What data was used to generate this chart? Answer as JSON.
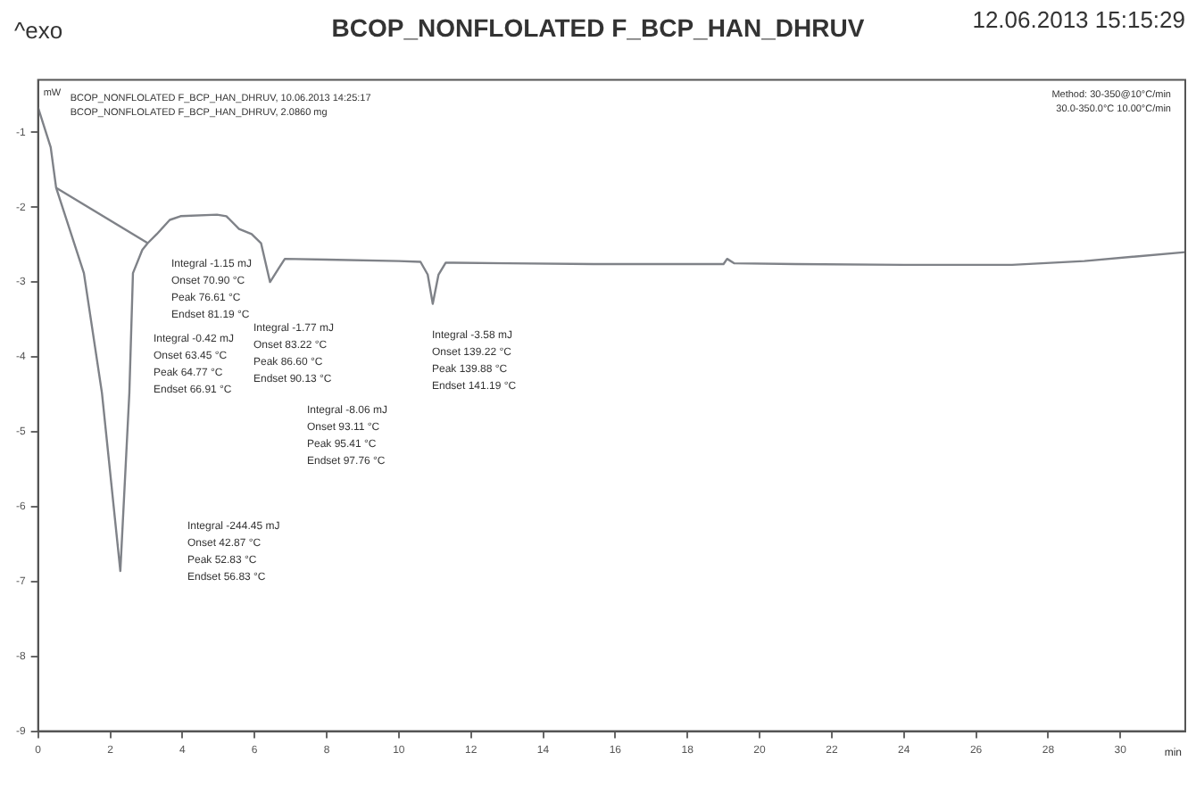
{
  "chart_data": {
    "type": "line",
    "title": "BCOP_NONFLOLATED F_BCP_HAN_DHRUV",
    "xlabel": "min",
    "ylabel": "mW",
    "xlim": [
      0,
      31.8
    ],
    "xticks": [
      0,
      2,
      4,
      6,
      8,
      10,
      12,
      14,
      16,
      18,
      20,
      22,
      24,
      26,
      28,
      30
    ],
    "ylim": [
      -9,
      -0.3
    ],
    "yticks": [
      -1,
      -2,
      -3,
      -4,
      -5,
      -6,
      -7,
      -8,
      -9
    ],
    "grid": false,
    "legend": false,
    "marker": "none",
    "line_style": "solid",
    "series": [
      {
        "color": "#7f8288",
        "x": [
          0,
          0.35,
          0.5,
          1.27,
          1.77,
          2.28,
          2.53,
          2.63,
          2.89,
          3.04,
          3.29,
          3.65,
          3.95,
          4.96,
          5.22,
          5.57,
          5.92,
          6.18,
          6.43,
          6.68,
          6.84,
          8,
          10,
          10.6,
          10.8,
          10.94,
          11.1,
          11.3,
          13,
          15.4,
          18,
          19.0,
          19.1,
          19.3,
          21,
          24,
          27,
          29,
          31.8
        ],
        "values": [
          -0.67,
          -1.2,
          -1.74,
          -2.88,
          -4.48,
          -6.86,
          -4.48,
          -2.88,
          -2.57,
          -2.48,
          -2.36,
          -2.17,
          -2.12,
          -2.1,
          -2.12,
          -2.29,
          -2.36,
          -2.48,
          -3.0,
          -2.81,
          -2.69,
          -2.7,
          -2.72,
          -2.73,
          -2.9,
          -3.29,
          -2.9,
          -2.74,
          -2.75,
          -2.76,
          -2.76,
          -2.76,
          -2.69,
          -2.75,
          -2.76,
          -2.77,
          -2.77,
          -2.72,
          -2.6
        ]
      },
      {
        "color": "#7f8288",
        "x": [
          0.5,
          3.04
        ],
        "values": [
          -1.74,
          -2.48
        ]
      }
    ],
    "annotations": [
      "^exo",
      "12.06.2013 15:15:29",
      "BCOP_NONFLOLATED F_BCP_HAN_DHRUV, 10.06.2013 14:25:17",
      "BCOP_NONFLOLATED F_BCP_HAN_DHRUV, 2.0860 mg",
      "Method: 30-350@10°C/min",
      "30.0-350.0°C 10.00°C/min",
      "Integral -1.15 mJ",
      "Onset 70.90 °C",
      "Peak 76.61 °C",
      "Endset 81.19 °C",
      "Integral -0.42 mJ",
      "Onset 63.45 °C",
      "Peak 64.77 °C",
      "Endset 66.91 °C",
      "Integral -1.77 mJ",
      "Onset 83.22 °C",
      "Peak 86.60 °C",
      "Endset 90.13 °C",
      "Integral -8.06 mJ",
      "Onset 93.11 °C",
      "Peak 95.41 °C",
      "Endset 97.76 °C",
      "Integral -3.58 mJ",
      "Onset 139.22 °C",
      "Peak 139.88 °C",
      "Endset 141.19 °C",
      "Integral -244.45 mJ",
      "Onset 42.87 °C",
      "Peak 52.83 °C",
      "Endset 56.83 °C"
    ]
  }
}
